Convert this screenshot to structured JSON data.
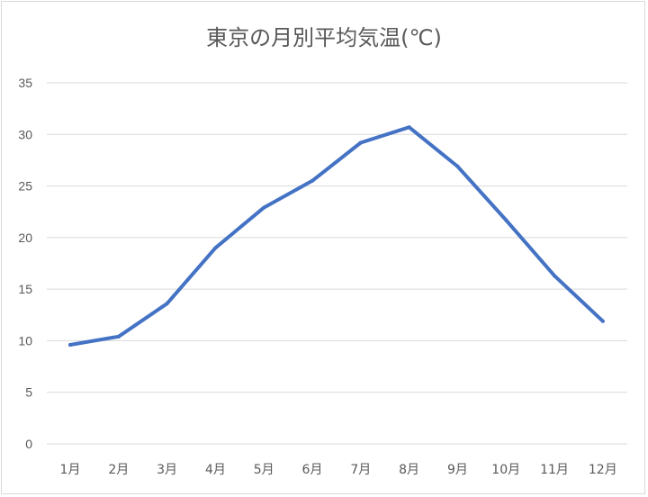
{
  "chart_data": {
    "type": "line",
    "title": "東京の月別平均気温(℃)",
    "xlabel": "",
    "ylabel": "",
    "categories": [
      "1月",
      "2月",
      "3月",
      "4月",
      "5月",
      "6月",
      "7月",
      "8月",
      "9月",
      "10月",
      "11月",
      "12月"
    ],
    "series": [
      {
        "values": [
          9.6,
          10.4,
          13.6,
          19.0,
          22.9,
          25.5,
          29.2,
          30.7,
          26.9,
          21.7,
          16.3,
          11.9
        ]
      }
    ],
    "ylim": [
      0,
      35
    ],
    "yticks": [
      "0",
      "5",
      "10",
      "15",
      "20",
      "25",
      "30",
      "35"
    ],
    "grid": true,
    "legend": "none",
    "line_color": "#4472c4",
    "grid_color": "#d9d9d9",
    "text_color": "#595959"
  }
}
